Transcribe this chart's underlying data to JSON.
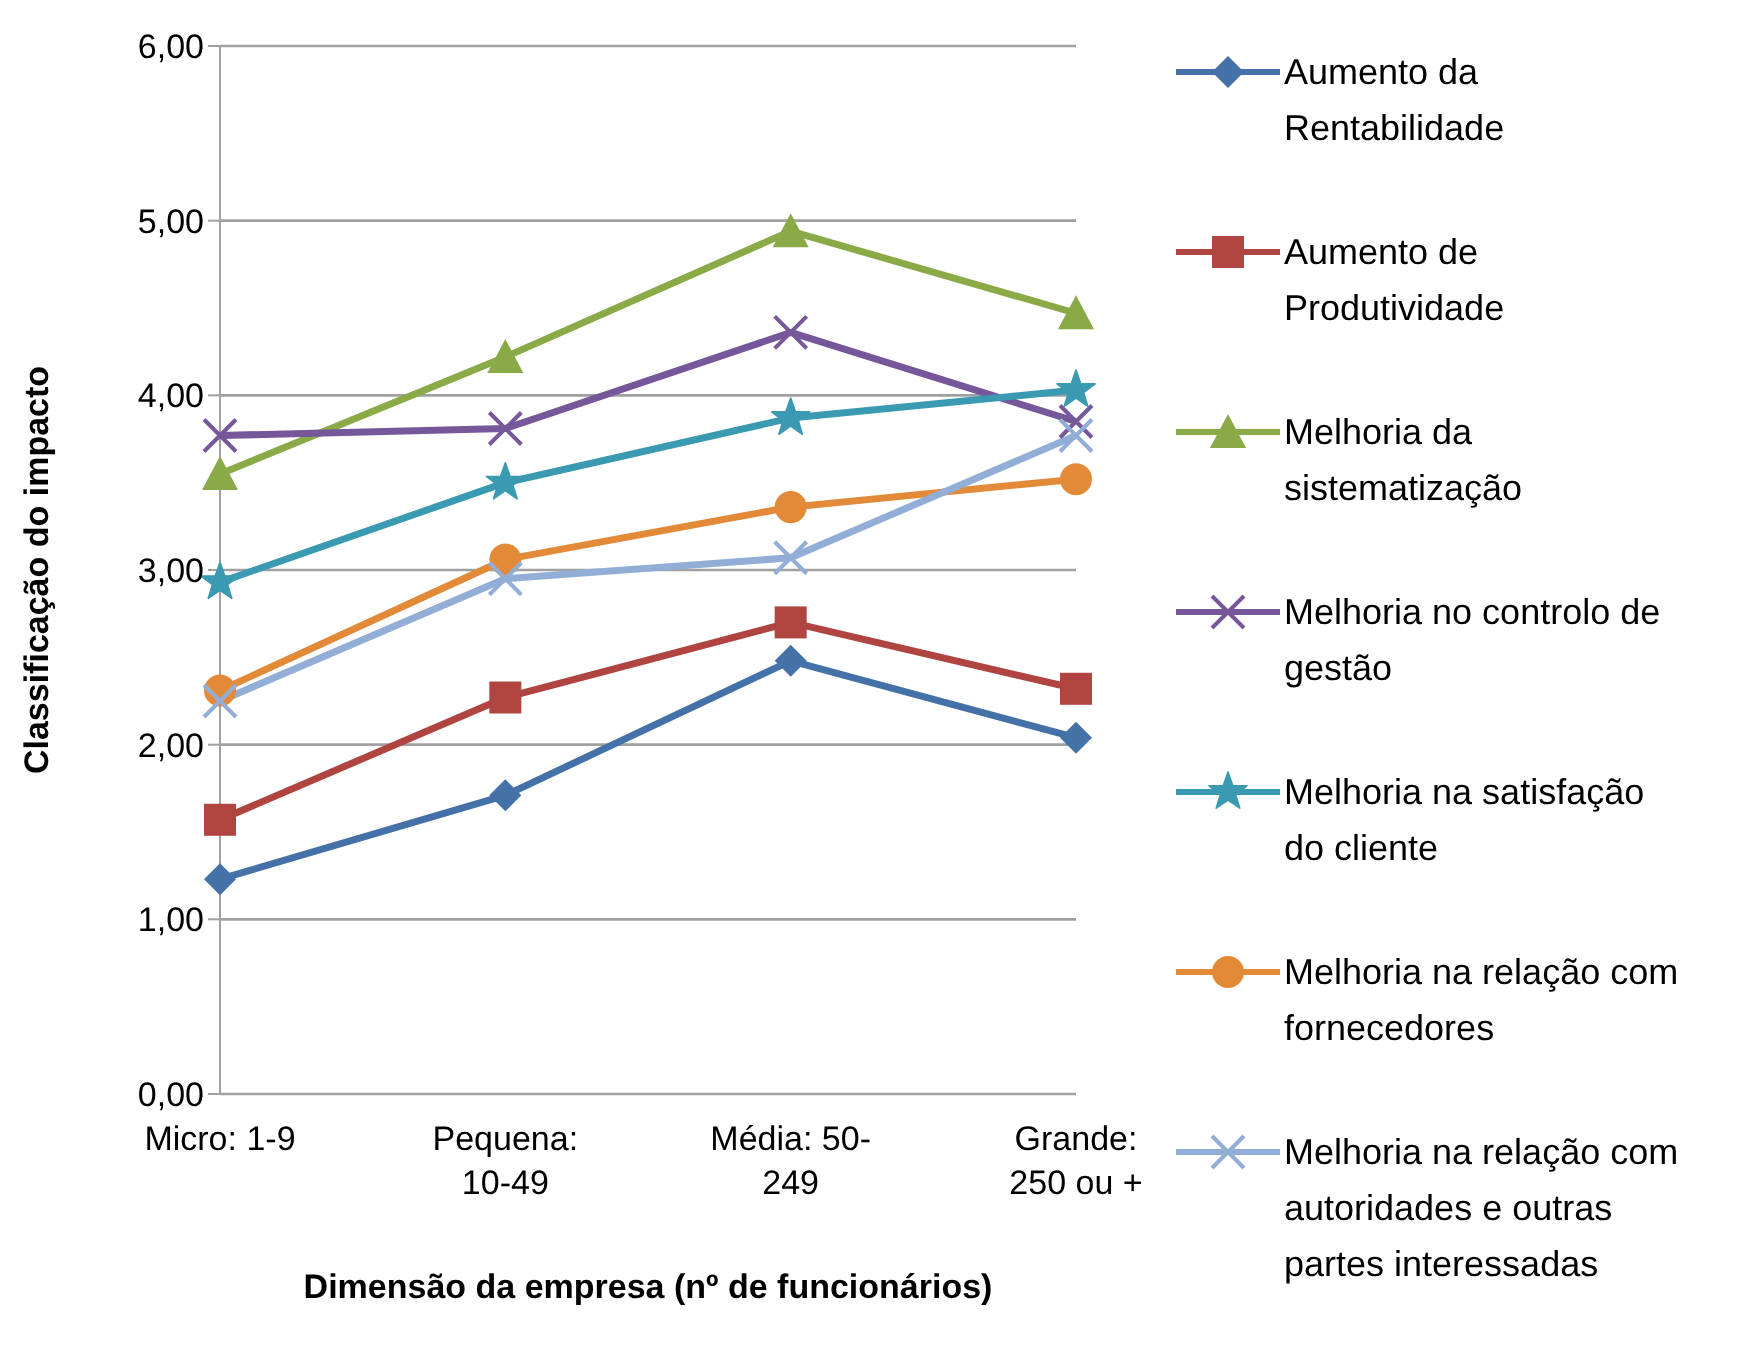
{
  "chart_data": {
    "type": "line",
    "xlabel": "Dimensão da empresa (nº de funcionários)",
    "ylabel": "Classificação do impacto",
    "categories": [
      "Micro: 1-9",
      "Pequena: 10-49",
      "Média: 50-249",
      "Grande: 250 ou +"
    ],
    "ylim": [
      0,
      6
    ],
    "yticks": [
      {
        "value": 0,
        "label": "0,00"
      },
      {
        "value": 1,
        "label": "1,00"
      },
      {
        "value": 2,
        "label": "2,00"
      },
      {
        "value": 3,
        "label": "3,00"
      },
      {
        "value": 4,
        "label": "4,00"
      },
      {
        "value": 5,
        "label": "5,00"
      },
      {
        "value": 6,
        "label": "6,00"
      }
    ],
    "grid": "y",
    "legend": "right",
    "series": [
      {
        "name": "Aumento da Rentabilidade",
        "color": "#4472a8",
        "marker": "diamond",
        "values": [
          1.23,
          1.71,
          2.48,
          2.04
        ]
      },
      {
        "name": "Aumento de Produtividade",
        "color": "#b04440",
        "marker": "square",
        "values": [
          1.57,
          2.27,
          2.7,
          2.32
        ]
      },
      {
        "name": "Melhoria da sistematização",
        "color": "#8aaa48",
        "marker": "triangle",
        "values": [
          3.55,
          4.22,
          4.94,
          4.47
        ]
      },
      {
        "name": "Melhoria no controlo de gestão",
        "color": "#76589a",
        "marker": "cross",
        "values": [
          3.77,
          3.81,
          4.36,
          3.85
        ]
      },
      {
        "name": "Melhoria na satisfação do cliente",
        "color": "#3a9ab2",
        "marker": "star",
        "values": [
          2.93,
          3.5,
          3.87,
          4.03
        ]
      },
      {
        "name": "Melhoria na relação com fornecedores",
        "color": "#e38a38",
        "marker": "circle",
        "values": [
          2.31,
          3.06,
          3.36,
          3.52
        ]
      },
      {
        "name": "Melhoria na relação com autoridades e outras partes interessadas",
        "color": "#93aed6",
        "marker": "cross",
        "values": [
          2.25,
          2.95,
          3.07,
          3.77
        ]
      }
    ]
  }
}
